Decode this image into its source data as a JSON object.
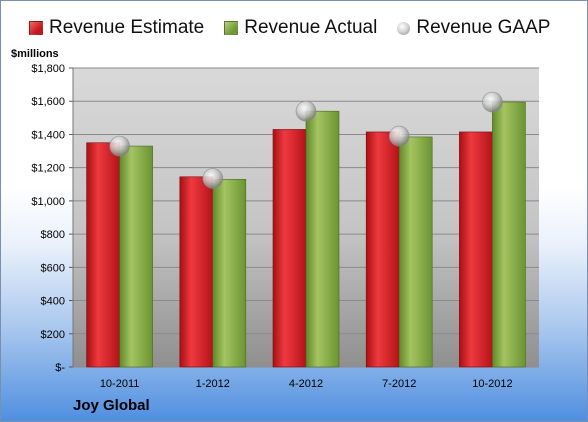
{
  "legend": {
    "estimate": "Revenue Estimate",
    "actual": "Revenue Actual",
    "gaap": "Revenue GAAP"
  },
  "unit_label": "$millions",
  "company": "Joy Global",
  "colors": {
    "estimate": "#d3181f",
    "actual": "#7fa53e",
    "gaap": "#c0c0c0",
    "plot_top": "#d8d8d8",
    "plot_bottom": "#9a9a9a"
  },
  "chart_data": {
    "type": "bar",
    "categories": [
      "10-2011",
      "1-2012",
      "4-2012",
      "7-2012",
      "10-2012"
    ],
    "series": [
      {
        "name": "Revenue Estimate",
        "values": [
          1350,
          1145,
          1430,
          1415,
          1415
        ]
      },
      {
        "name": "Revenue Actual",
        "values": [
          1330,
          1130,
          1540,
          1385,
          1595
        ]
      },
      {
        "name": "Revenue GAAP",
        "values": [
          1330,
          1135,
          1540,
          1390,
          1595
        ]
      }
    ],
    "ylim": [
      0,
      1800
    ],
    "yticks": [
      0,
      200,
      400,
      600,
      800,
      1000,
      1200,
      1400,
      1600,
      1800
    ],
    "ytick_labels": [
      "$-",
      "$200",
      "$400",
      "$600",
      "$800",
      "$1,000",
      "$1,200",
      "$1,400",
      "$1,600",
      "$1,800"
    ],
    "grid": true,
    "legend_position": "top"
  }
}
